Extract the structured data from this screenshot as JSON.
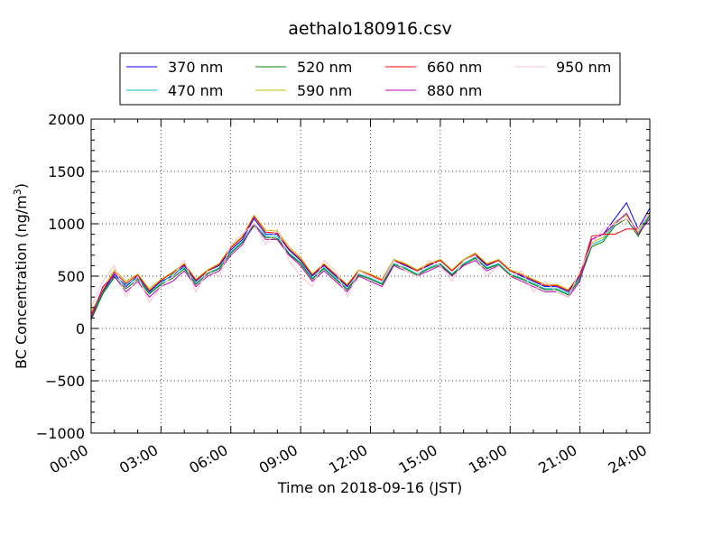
{
  "figure": {
    "title": "aethalo180916.csv"
  },
  "legend": {
    "placement": "top-center (above plot), 4 columns",
    "entries": [
      {
        "label": "370 nm",
        "color": "#0000ff"
      },
      {
        "label": "520 nm",
        "color": "#008000"
      },
      {
        "label": "660 nm",
        "color": "#ff0000"
      },
      {
        "label": "950 nm",
        "color": "#ffc0cb"
      },
      {
        "label": "470 nm",
        "color": "#00bfbf"
      },
      {
        "label": "590 nm",
        "color": "#bfbf00"
      },
      {
        "label": "880 nm",
        "color": "#bf00bf"
      }
    ]
  },
  "chart_data": {
    "type": "line",
    "title": "aethalo180916.csv",
    "xlabel": "Time on 2018-09-16 (JST)",
    "ylabel": "BC Concentration (ng/m",
    "ylabel_sup": "3",
    "ylabel_end": ")",
    "x_unit": "hours (JST)",
    "xlim": [
      0,
      24
    ],
    "ylim": [
      -1000,
      2000
    ],
    "grid": true,
    "grid_style": "dotted",
    "x_ticks": [
      0,
      3,
      6,
      9,
      12,
      15,
      18,
      21,
      24
    ],
    "x_tick_labels": [
      "00:00",
      "03:00",
      "06:00",
      "09:00",
      "12:00",
      "15:00",
      "18:00",
      "21:00",
      "24:00"
    ],
    "y_ticks": [
      -1000,
      -500,
      0,
      500,
      1000,
      1500,
      2000
    ],
    "y_tick_labels": [
      "−1000",
      "−500",
      "0",
      "500",
      "1000",
      "1500",
      "2000"
    ],
    "x": [
      0,
      0.5,
      1,
      1.5,
      2,
      2.5,
      3,
      3.5,
      4,
      4.5,
      5,
      5.5,
      6,
      6.5,
      7,
      7.5,
      8,
      8.5,
      9,
      9.5,
      10,
      10.5,
      11,
      11.5,
      12,
      12.5,
      13,
      13.5,
      14,
      14.5,
      15,
      15.5,
      16,
      16.5,
      17,
      17.5,
      18,
      18.5,
      19,
      19.5,
      20,
      20.5,
      21,
      21.5,
      22,
      22.5,
      23,
      23.5,
      24
    ],
    "series": [
      {
        "name": "370 nm",
        "color": "#0000ff",
        "values": [
          100,
          350,
          520,
          400,
          500,
          350,
          450,
          500,
          600,
          450,
          550,
          600,
          750,
          850,
          1050,
          900,
          900,
          750,
          650,
          500,
          600,
          500,
          400,
          550,
          500,
          450,
          650,
          600,
          550,
          600,
          650,
          550,
          650,
          700,
          600,
          650,
          550,
          500,
          450,
          400,
          400,
          350,
          500,
          850,
          900,
          1050,
          1200,
          950,
          1150
        ]
      },
      {
        "name": "470 nm",
        "color": "#00bfbf",
        "values": [
          120,
          340,
          500,
          420,
          480,
          340,
          430,
          520,
          580,
          430,
          530,
          580,
          730,
          830,
          1000,
          880,
          880,
          720,
          630,
          480,
          580,
          480,
          380,
          520,
          480,
          430,
          620,
          580,
          520,
          580,
          620,
          520,
          620,
          680,
          580,
          620,
          520,
          480,
          430,
          380,
          380,
          330,
          480,
          800,
          850,
          1000,
          1100,
          900,
          1100
        ]
      },
      {
        "name": "520 nm",
        "color": "#008000",
        "values": [
          80,
          330,
          490,
          380,
          470,
          330,
          420,
          480,
          570,
          420,
          520,
          570,
          720,
          820,
          980,
          870,
          860,
          710,
          620,
          470,
          570,
          470,
          370,
          510,
          470,
          420,
          610,
          570,
          510,
          570,
          610,
          510,
          610,
          670,
          570,
          610,
          510,
          470,
          420,
          370,
          370,
          320,
          470,
          780,
          830,
          980,
          1050,
          880,
          1080
        ]
      },
      {
        "name": "590 nm",
        "color": "#bfbf00",
        "values": [
          150,
          380,
          560,
          450,
          520,
          380,
          470,
          540,
          620,
          470,
          560,
          620,
          780,
          880,
          1080,
          940,
          930,
          780,
          680,
          520,
          620,
          520,
          420,
          560,
          520,
          470,
          660,
          620,
          560,
          620,
          660,
          560,
          660,
          720,
          620,
          660,
          560,
          520,
          470,
          420,
          420,
          370,
          520,
          820,
          870,
          1020,
          1080,
          920,
          1120
        ]
      },
      {
        "name": "660 nm",
        "color": "#ff0000",
        "values": [
          130,
          360,
          540,
          430,
          510,
          360,
          460,
          530,
          610,
          460,
          550,
          610,
          770,
          870,
          1070,
          920,
          910,
          760,
          660,
          510,
          610,
          510,
          410,
          550,
          510,
          460,
          650,
          610,
          550,
          610,
          650,
          550,
          650,
          710,
          610,
          650,
          550,
          510,
          460,
          410,
          410,
          360,
          510,
          880,
          900,
          900,
          950,
          950,
          1100
        ]
      },
      {
        "name": "880 nm",
        "color": "#bf00bf",
        "values": [
          90,
          400,
          500,
          350,
          450,
          300,
          400,
          450,
          550,
          400,
          500,
          550,
          700,
          800,
          1000,
          850,
          850,
          700,
          600,
          450,
          550,
          450,
          350,
          500,
          450,
          400,
          600,
          550,
          500,
          550,
          600,
          500,
          600,
          650,
          550,
          600,
          500,
          450,
          400,
          350,
          350,
          300,
          450,
          850,
          900,
          1000,
          1100,
          900,
          1050
        ]
      },
      {
        "name": "950 nm",
        "color": "#ffc0cb",
        "values": [
          200,
          450,
          600,
          300,
          500,
          250,
          400,
          500,
          650,
          350,
          550,
          500,
          800,
          900,
          1000,
          800,
          950,
          650,
          500,
          400,
          650,
          550,
          300,
          550,
          500,
          450,
          650,
          550,
          500,
          650,
          600,
          450,
          650,
          700,
          500,
          600,
          500,
          550,
          350,
          450,
          350,
          300,
          550,
          800,
          950,
          1000,
          1050,
          950,
          1100
        ]
      }
    ]
  }
}
